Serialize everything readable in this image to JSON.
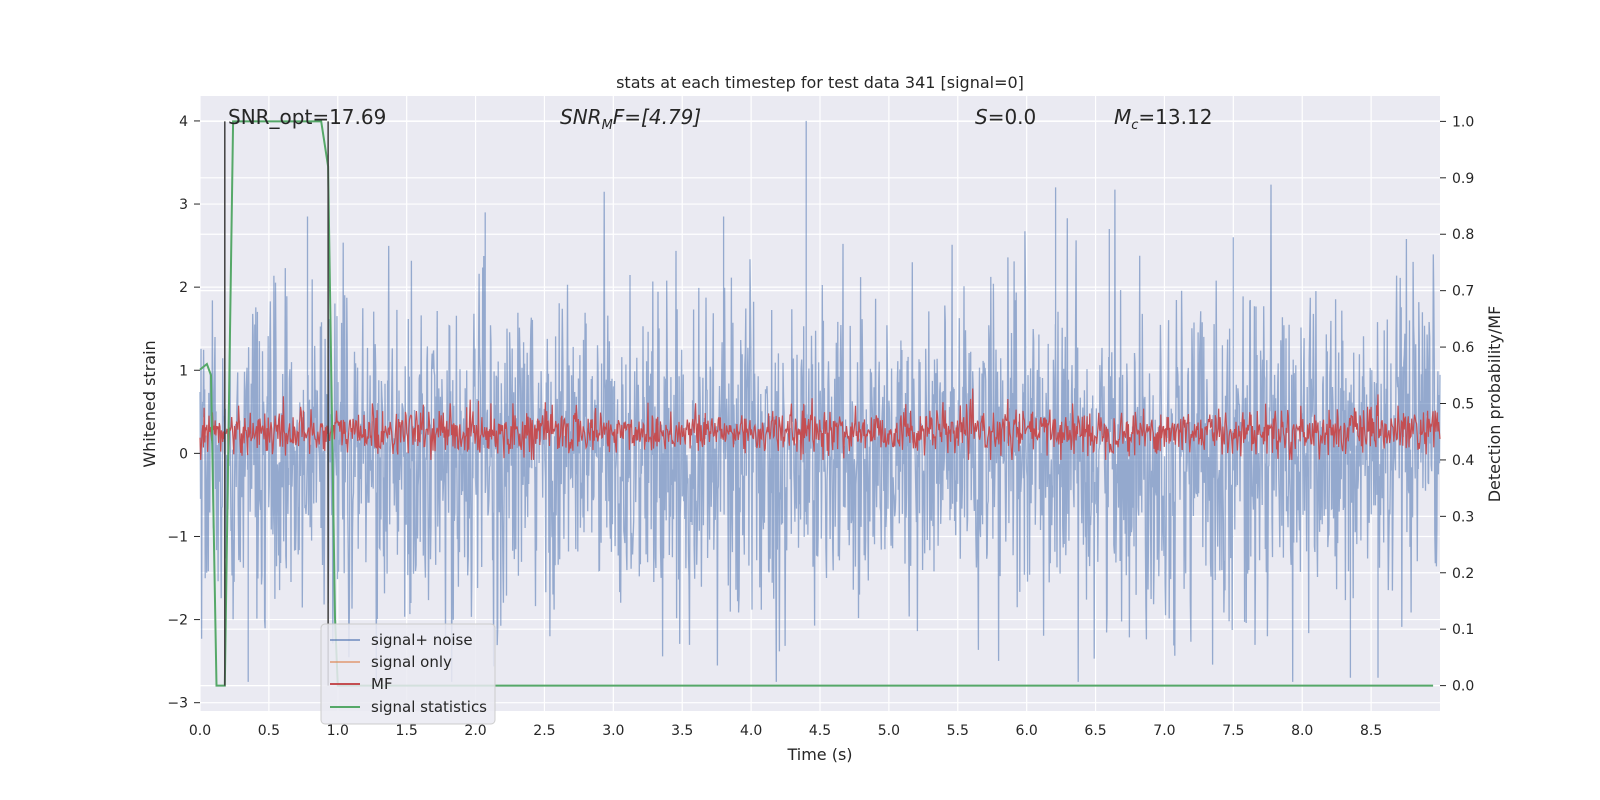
{
  "chart_data": {
    "type": "line",
    "title": "stats at each timestep for test data 341 [signal=0]",
    "xlabel": "Time (s)",
    "ylabel": "Whitened strain",
    "y2label": "Detection probability/MF",
    "xlim": [
      0.0,
      9.0
    ],
    "ylim": [
      -3.1,
      4.3
    ],
    "y2lim": [
      -0.045,
      1.045
    ],
    "grid": true,
    "x_ticks": [
      "0.0",
      "0.5",
      "1.0",
      "1.5",
      "2.0",
      "2.5",
      "3.0",
      "3.5",
      "4.0",
      "4.5",
      "5.0",
      "5.5",
      "6.0",
      "6.5",
      "7.0",
      "7.5",
      "8.0",
      "8.5"
    ],
    "y_ticks": [
      "−3",
      "−2",
      "−1",
      "0",
      "1",
      "2",
      "3",
      "4"
    ],
    "y2_ticks": [
      "0.0",
      "0.1",
      "0.2",
      "0.3",
      "0.4",
      "0.5",
      "0.6",
      "0.7",
      "0.8",
      "0.9",
      "1.0"
    ],
    "annotations": {
      "snr_opt": "SNR_opt=17.69",
      "snr_mf_math": "SNR",
      "snr_mf_sub": "M",
      "snr_mf_rest": "F=[4.79]",
      "s_math": "S",
      "s_rest": "=0.0",
      "mc_math": "M",
      "mc_sub": "c",
      "mc_rest": "=13.12"
    },
    "legend_position": "lower-left",
    "series": [
      {
        "name": "signal+ noise",
        "color": "#4c72b0",
        "axis": "left",
        "description_stats": {
          "mean": 0.0,
          "std": 1.0,
          "max": 4.0,
          "min": -2.75
        },
        "peaks": [
          {
            "x": 4.4,
            "y": 4.0
          },
          {
            "x": 6.21,
            "y": 3.2
          },
          {
            "x": 0.78,
            "y": 2.85
          },
          {
            "x": 2.07,
            "y": 2.9
          },
          {
            "x": 3.8,
            "y": 2.85
          },
          {
            "x": 6.6,
            "y": 2.7
          },
          {
            "x": 7.5,
            "y": 2.6
          },
          {
            "x": 8.35,
            "y": -2.7
          },
          {
            "x": 0.35,
            "y": -2.75
          },
          {
            "x": 8.55,
            "y": -2.7
          }
        ]
      },
      {
        "name": "signal only",
        "color": "#dd8452",
        "axis": "left",
        "values": []
      },
      {
        "name": "MF",
        "color": "#c44e52",
        "axis": "right",
        "description_stats": {
          "mean": 0.45,
          "min": 0.4,
          "max": 0.55
        }
      },
      {
        "name": "signal statistics",
        "color": "#55a868",
        "axis": "right",
        "x": [
          0.0,
          0.05,
          0.08,
          0.12,
          0.18,
          0.24,
          0.3,
          0.88,
          0.93,
          0.98,
          1.0,
          1.05,
          8.95
        ],
        "y": [
          0.56,
          0.57,
          0.55,
          0.0,
          0.0,
          1.0,
          1.0,
          1.0,
          0.92,
          0.12,
          0.0,
          0.0,
          0.0
        ]
      }
    ],
    "vertical_lines": [
      {
        "x": 0.18,
        "color": "#404040"
      },
      {
        "x": 0.93,
        "color": "#404040"
      }
    ]
  }
}
